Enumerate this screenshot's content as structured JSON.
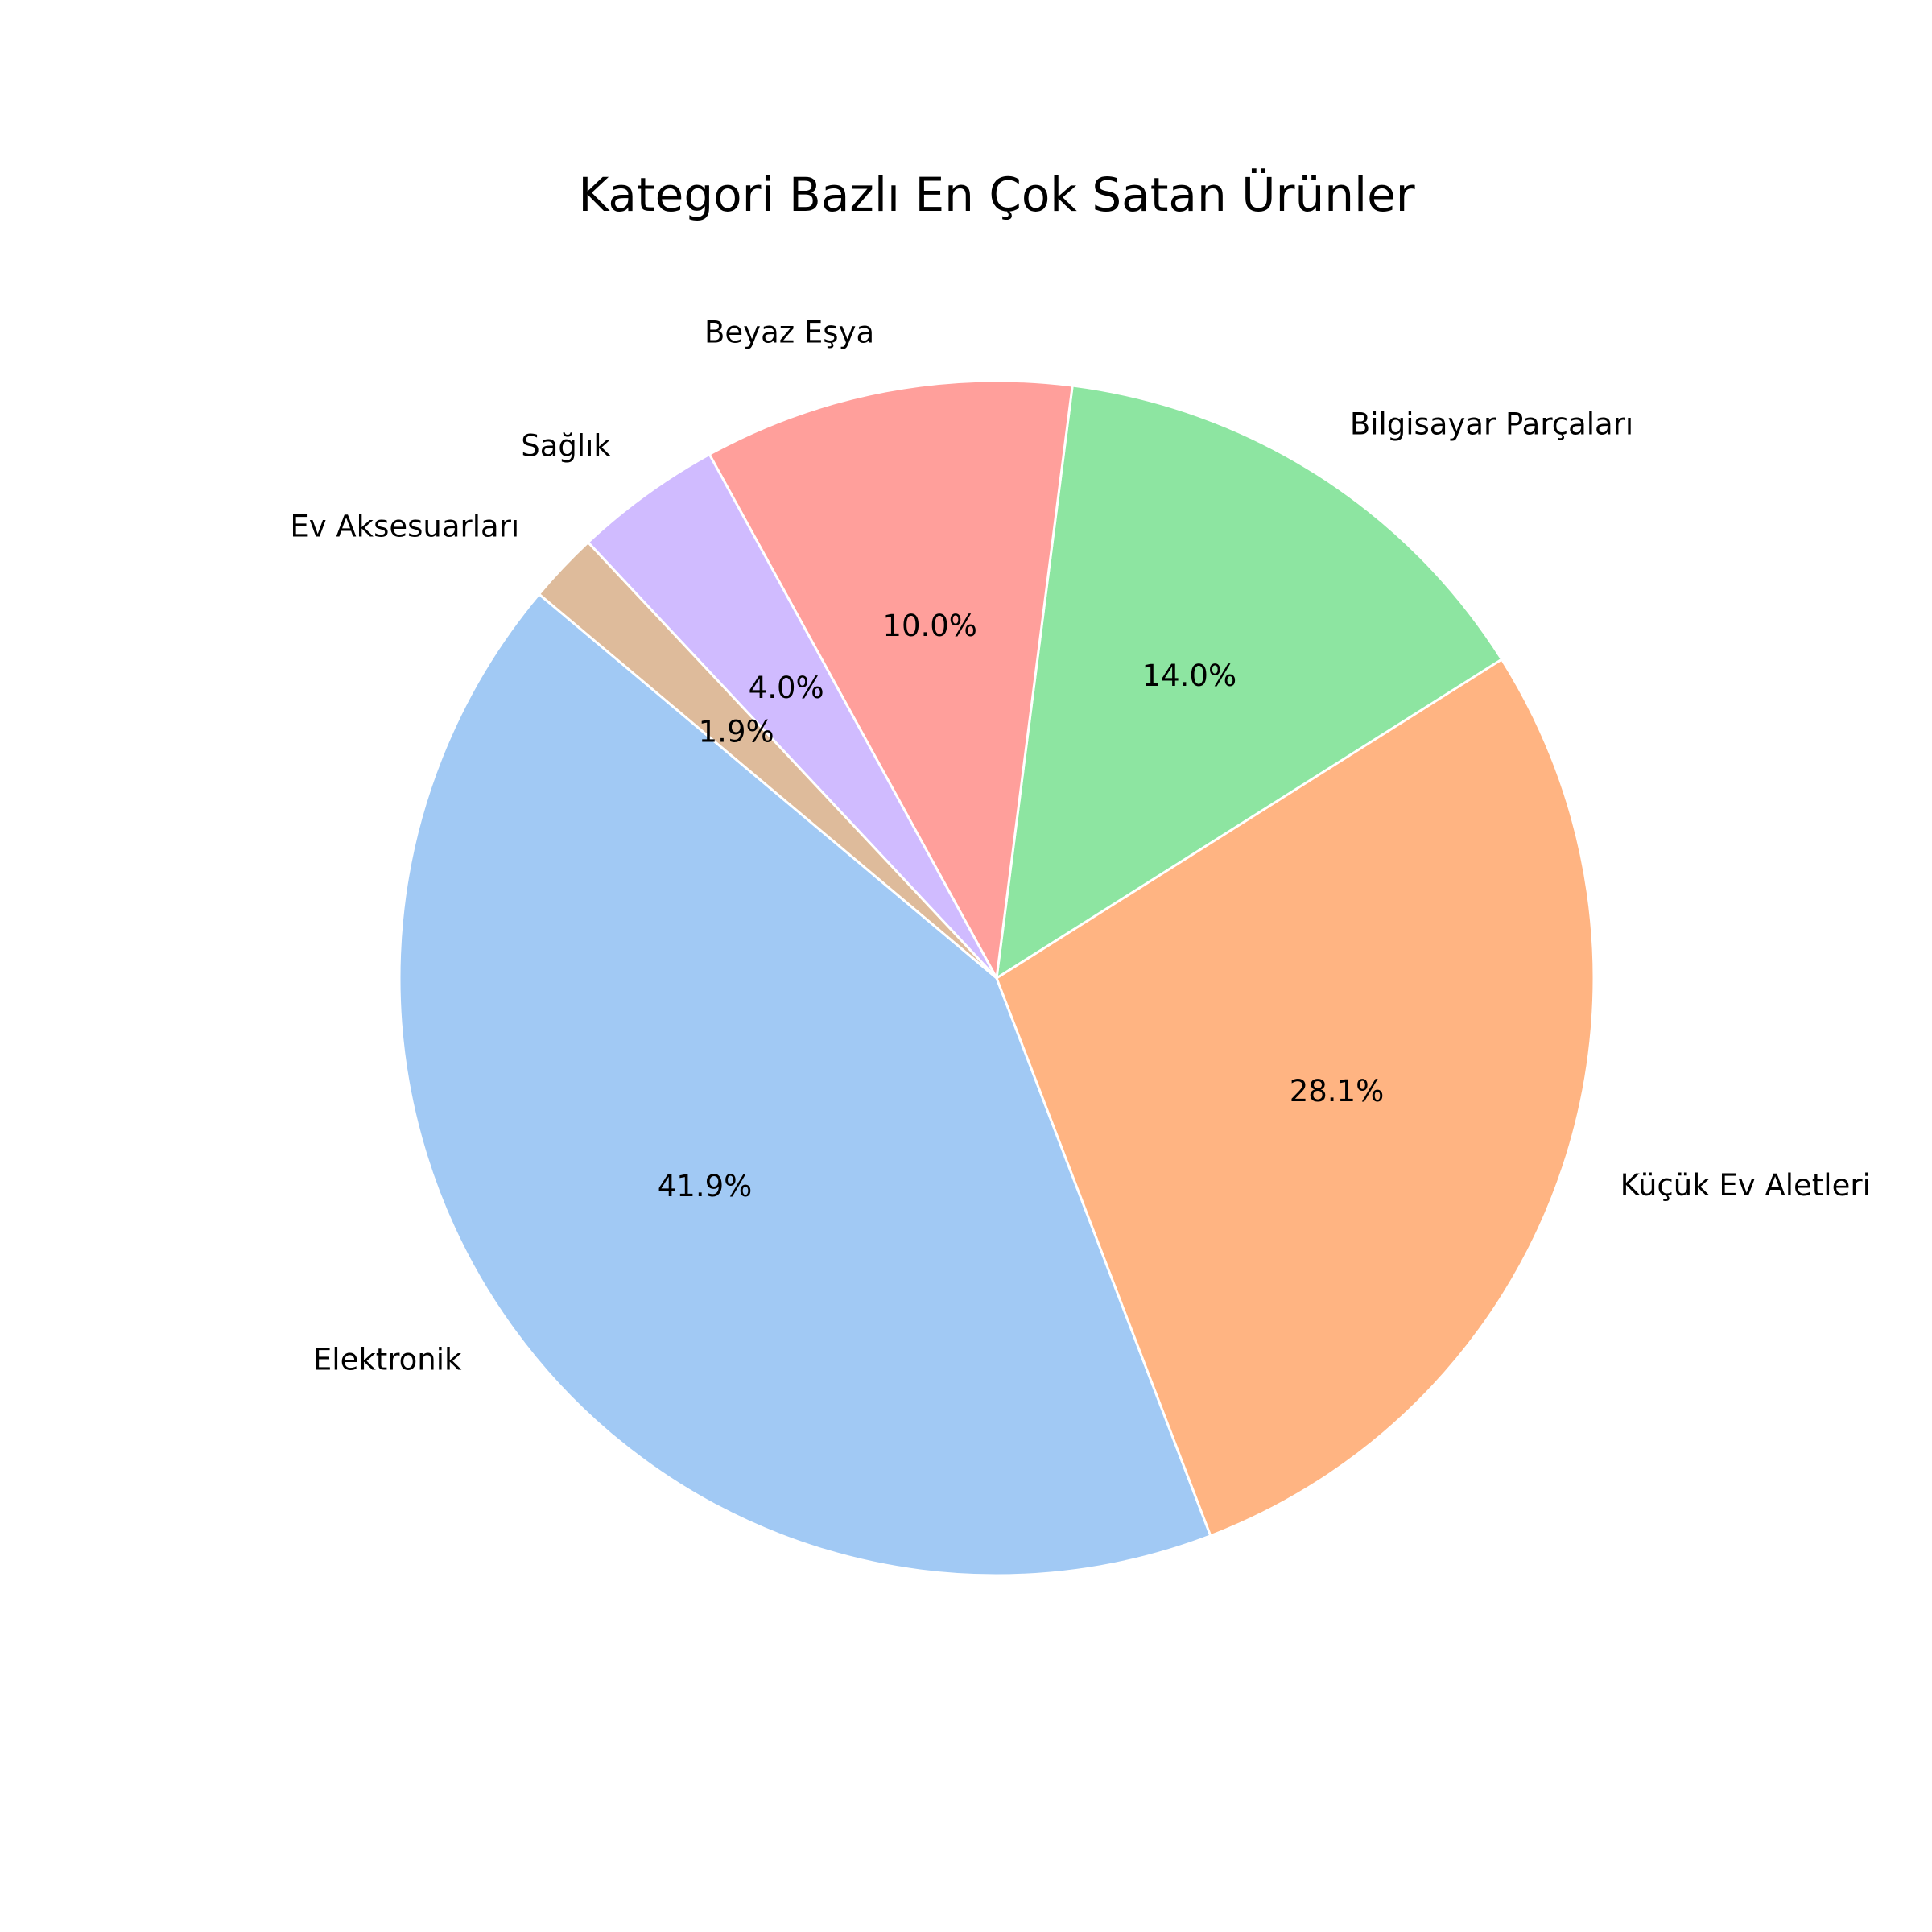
{
  "chart_data": {
    "type": "pie",
    "title": "Kategori Bazlı En Çok Satan Ürünler",
    "start_angle_deg": 140,
    "direction": "counterclockwise",
    "slices": [
      {
        "label": "Elektronik",
        "value": 41.9,
        "pct_label": "41.9%",
        "color": "#a1c9f4"
      },
      {
        "label": "Küçük Ev Aletleri",
        "value": 28.1,
        "pct_label": "28.1%",
        "color": "#ffb482"
      },
      {
        "label": "Bilgisayar Parçaları",
        "value": 14.0,
        "pct_label": "14.0%",
        "color": "#8de5a1"
      },
      {
        "label": "Beyaz Eşya",
        "value": 10.0,
        "pct_label": "10.0%",
        "color": "#ff9f9b"
      },
      {
        "label": "Sağlık",
        "value": 4.0,
        "pct_label": "4.0%",
        "color": "#d0bbff"
      },
      {
        "label": "Ev Aksesuarları",
        "value": 1.9,
        "pct_label": "1.9%",
        "color": "#debb9b"
      }
    ]
  }
}
